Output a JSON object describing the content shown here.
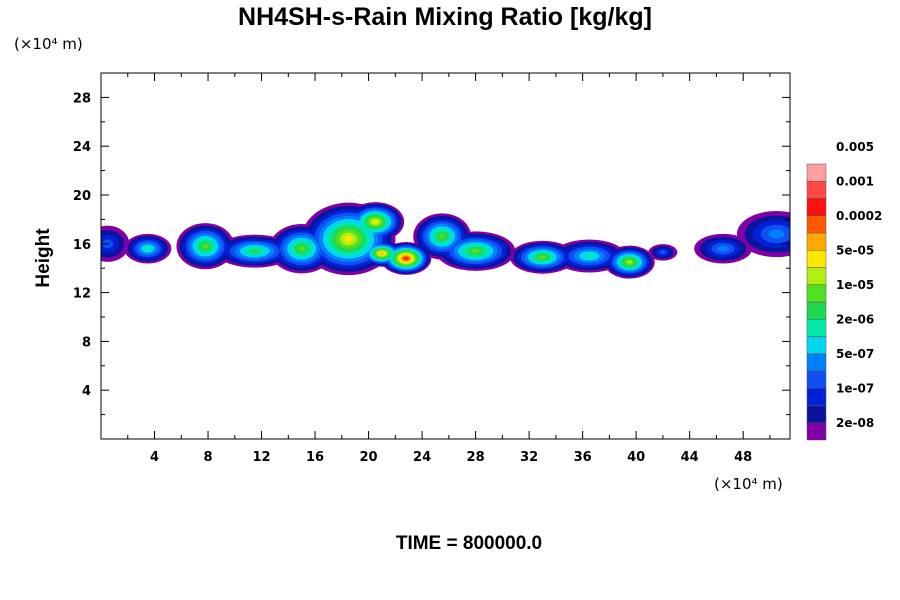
{
  "chart_data": {
    "type": "heatmap",
    "title": "NH4SH-s-Rain Mixing Ratio [kg/kg]",
    "ylabel": "Height",
    "y_unit": "(×10⁴ m)",
    "x_unit": "(×10⁴ m)",
    "time_label": "TIME = 800000.0",
    "xlim": [
      0,
      51.5
    ],
    "ylim": [
      0,
      30
    ],
    "x_ticks": [
      "4",
      "8",
      "12",
      "16",
      "20",
      "24",
      "28",
      "32",
      "36",
      "40",
      "44",
      "48"
    ],
    "y_ticks": [
      "4",
      "8",
      "12",
      "16",
      "20",
      "24",
      "28"
    ],
    "colorbar": {
      "colors": [
        "#7f00a6",
        "#0a149a",
        "#0020d8",
        "#1050f0",
        "#0080ff",
        "#00d8f0",
        "#00e8a8",
        "#20d850",
        "#50e020",
        "#b0ef10",
        "#ffe800",
        "#ffa800",
        "#ff5800",
        "#ff1010",
        "#ff4848",
        "#ff9f9f"
      ],
      "labels": [
        "2e-08",
        "1e-07",
        "5e-07",
        "2e-06",
        "1e-05",
        "5e-05",
        "0.0002",
        "0.001",
        "0.005"
      ]
    },
    "field": {
      "description_of_cloud_regions": "mixing ratio blobs; x range and height in data units, peak level index into colorbar",
      "blobs": [
        {
          "x": 0.5,
          "y": 16.0,
          "sx": 1.2,
          "sy": 1.1,
          "peak": 3
        },
        {
          "x": 3.5,
          "y": 15.6,
          "sx": 1.3,
          "sy": 0.9,
          "peak": 6
        },
        {
          "x": 7.8,
          "y": 15.8,
          "sx": 1.6,
          "sy": 1.4,
          "peak": 8
        },
        {
          "x": 11.5,
          "y": 15.4,
          "sx": 2.2,
          "sy": 1.0,
          "peak": 7
        },
        {
          "x": 15.0,
          "y": 15.6,
          "sx": 1.8,
          "sy": 1.5,
          "peak": 8
        },
        {
          "x": 18.5,
          "y": 16.4,
          "sx": 2.6,
          "sy": 2.2,
          "peak": 10
        },
        {
          "x": 20.5,
          "y": 17.8,
          "sx": 1.6,
          "sy": 1.2,
          "peak": 10
        },
        {
          "x": 22.8,
          "y": 14.8,
          "sx": 1.4,
          "sy": 1.0,
          "peak": 13
        },
        {
          "x": 21.0,
          "y": 15.2,
          "sx": 1.2,
          "sy": 0.8,
          "peak": 11
        },
        {
          "x": 25.5,
          "y": 16.6,
          "sx": 1.6,
          "sy": 1.4,
          "peak": 8
        },
        {
          "x": 28.0,
          "y": 15.4,
          "sx": 2.2,
          "sy": 1.2,
          "peak": 8
        },
        {
          "x": 33.0,
          "y": 14.9,
          "sx": 1.8,
          "sy": 1.0,
          "peak": 8
        },
        {
          "x": 36.5,
          "y": 15.0,
          "sx": 2.0,
          "sy": 1.0,
          "peak": 6
        },
        {
          "x": 39.5,
          "y": 14.5,
          "sx": 1.4,
          "sy": 1.0,
          "peak": 9
        },
        {
          "x": 42.0,
          "y": 15.3,
          "sx": 0.8,
          "sy": 0.5,
          "peak": 3
        },
        {
          "x": 46.5,
          "y": 15.6,
          "sx": 1.6,
          "sy": 0.9,
          "peak": 4
        },
        {
          "x": 50.5,
          "y": 16.8,
          "sx": 2.2,
          "sy": 1.4,
          "peak": 4
        }
      ]
    }
  }
}
